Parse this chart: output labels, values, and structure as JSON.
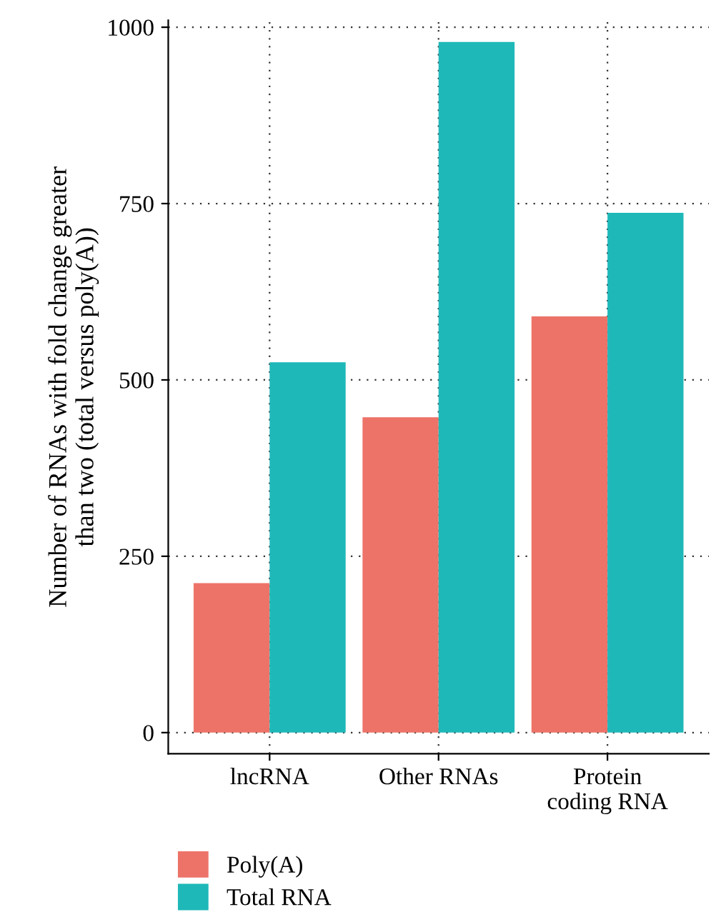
{
  "chart_data": {
    "type": "bar",
    "ylabel": "Number of RNAs with fold change greater\nthan two (total versus poly(A))",
    "categories": [
      "lncRNA",
      "Other RNAs",
      "Protein\ncoding RNA"
    ],
    "series": [
      {
        "name": "Poly(A)",
        "color": "#ed7369",
        "values": [
          212,
          447,
          590
        ]
      },
      {
        "name": "Total RNA",
        "color": "#1fb8b8",
        "values": [
          525,
          979,
          737
        ]
      }
    ],
    "ylim": [
      -30,
      1010
    ],
    "yticks": [
      0,
      250,
      500,
      750,
      1000
    ],
    "grid": true,
    "legend": "bottom"
  }
}
